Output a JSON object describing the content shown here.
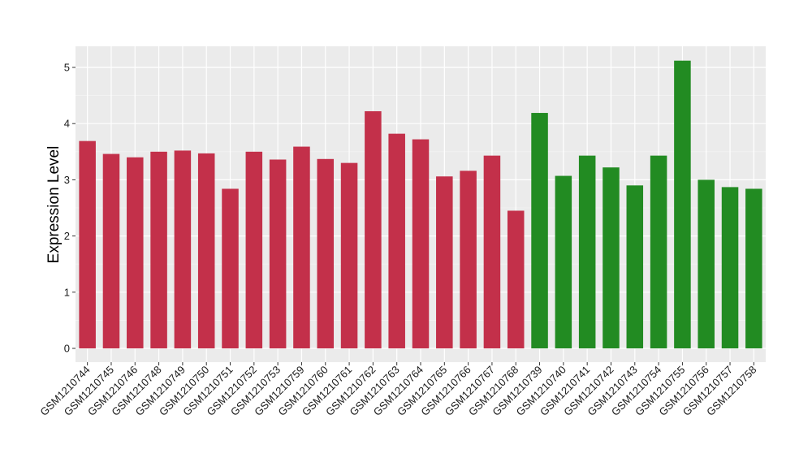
{
  "chart_data": {
    "type": "bar",
    "title": "",
    "xlabel": "",
    "ylabel": "Expression Level",
    "ylim": [
      0,
      5.3
    ],
    "yticks": [
      0,
      1,
      2,
      3,
      4,
      5
    ],
    "grid": true,
    "categories": [
      "GSM1210744",
      "GSM1210745",
      "GSM1210746",
      "GSM1210748",
      "GSM1210749",
      "GSM1210750",
      "GSM1210751",
      "GSM1210752",
      "GSM1210753",
      "GSM1210759",
      "GSM1210760",
      "GSM1210761",
      "GSM1210762",
      "GSM1210763",
      "GSM1210764",
      "GSM1210765",
      "GSM1210766",
      "GSM1210767",
      "GSM1210768",
      "GSM1210739",
      "GSM1210740",
      "GSM1210741",
      "GSM1210742",
      "GSM1210743",
      "GSM1210754",
      "GSM1210755",
      "GSM1210756",
      "GSM1210757",
      "GSM1210758"
    ],
    "values": [
      3.69,
      3.46,
      3.4,
      3.5,
      3.52,
      3.47,
      2.84,
      3.5,
      3.36,
      3.59,
      3.37,
      3.3,
      4.22,
      3.82,
      3.72,
      3.06,
      3.16,
      3.43,
      2.45,
      4.19,
      3.07,
      3.43,
      3.22,
      2.9,
      3.43,
      5.12,
      3.0,
      2.87,
      2.84
    ],
    "groups": [
      "red",
      "red",
      "red",
      "red",
      "red",
      "red",
      "red",
      "red",
      "red",
      "red",
      "red",
      "red",
      "red",
      "red",
      "red",
      "red",
      "red",
      "red",
      "red",
      "green",
      "green",
      "green",
      "green",
      "green",
      "green",
      "green",
      "green",
      "green",
      "green"
    ],
    "colors": {
      "red": "#C3304A",
      "green": "#228B22",
      "panel": "#EBEBEB",
      "grid_major": "#FFFFFF",
      "grid_minor": "#F4F4F4",
      "tick": "#333333"
    }
  }
}
